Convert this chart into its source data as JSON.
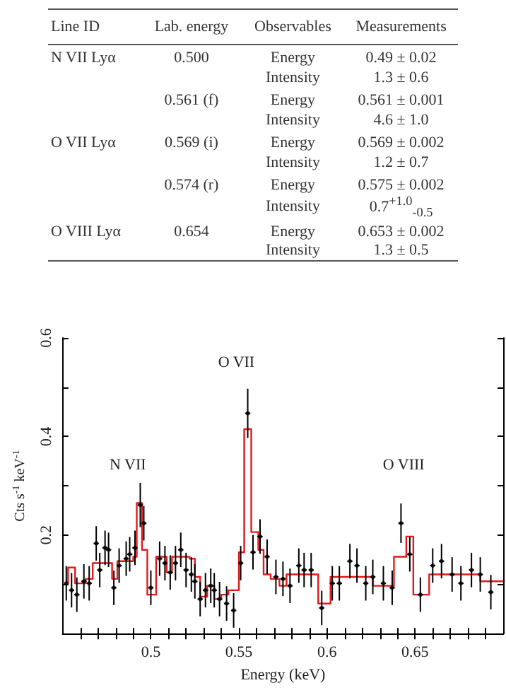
{
  "chart_data": [
    {
      "type": "other",
      "categories": [
        "Line ID",
        "Lab. energy",
        "Observables",
        "Measurements"
      ],
      "annotations": [
        "N VII Lyα",
        "0.500",
        "Energy",
        "0.49 ± 0.02",
        null,
        null,
        "Intensity",
        "1.3 ± 0.6",
        null,
        "0.561 (f)",
        "Energy",
        "0.561 ± 0.001",
        null,
        null,
        "Intensity",
        "4.6 ± 1.0",
        "O VII Lyα",
        "0.569 (i)",
        "Energy",
        "0.569 ± 0.002",
        null,
        null,
        "Intensity",
        "1.2 ± 0.7",
        null,
        "0.574 (r)",
        "Energy",
        "0.575 ± 0.002",
        null,
        null,
        "Intensity",
        "0.7$^{+1.0}$$_{-0.5}$",
        "O VIII Lyα",
        "0.654",
        "Energy",
        "0.653 ± 0.002",
        null,
        null,
        "Intensity",
        "1.3 ± 0.5"
      ]
    },
    {
      "type": "scatter",
      "xlabel": "Energy (keV)",
      "ylabel": "Cts s$^{-1}$ keV$^{-1}$",
      "xlim": [
        0.45,
        0.7
      ],
      "ylim": [
        0,
        0.6
      ],
      "xticks": [
        {
          "value": 0.46,
          "label": null
        },
        {
          "value": 0.47,
          "label": null
        },
        {
          "value": 0.48,
          "label": null
        },
        {
          "value": 0.49,
          "label": null
        },
        0.5,
        {
          "value": 0.51,
          "label": null
        },
        {
          "value": 0.52,
          "label": null
        },
        {
          "value": 0.53,
          "label": null
        },
        {
          "value": 0.54,
          "label": null
        },
        0.55,
        {
          "value": 0.56,
          "label": null
        },
        {
          "value": 0.57,
          "label": null
        },
        {
          "value": 0.58,
          "label": null
        },
        {
          "value": 0.59,
          "label": null
        },
        0.6,
        {
          "value": 0.61,
          "label": null
        },
        {
          "value": 0.62,
          "label": null
        },
        {
          "value": 0.63,
          "label": null
        },
        {
          "value": 0.64,
          "label": null
        },
        0.65,
        {
          "value": 0.66,
          "label": null
        },
        {
          "value": 0.67,
          "label": null
        },
        {
          "value": 0.68,
          "label": null
        },
        {
          "value": 0.69,
          "label": null
        }
      ],
      "yticks": [
        {
          "value": 0.1,
          "label": null
        },
        0.2,
        {
          "value": 0.3,
          "label": null
        },
        0.4,
        {
          "value": 0.5,
          "label": null
        },
        0.6
      ],
      "annotations": [
        "N VII",
        "O VII",
        "O VIII"
      ],
      "series": [
        {
          "type": "scatter",
          "color": "#000000",
          "marker": "circle",
          "x": [
            0.452,
            0.455,
            0.458,
            0.462,
            0.465,
            0.469,
            0.471,
            0.474,
            0.476,
            0.479,
            0.482,
            0.486,
            0.488,
            0.491,
            0.494,
            0.496,
            0.5,
            0.505,
            0.508,
            0.511,
            0.514,
            0.517,
            0.52,
            0.523,
            0.525,
            0.528,
            0.531,
            0.534,
            0.536,
            0.539,
            0.543,
            0.547,
            0.551,
            0.555,
            0.558,
            0.562,
            0.566,
            0.571,
            0.575,
            0.579,
            0.584,
            0.587,
            0.591,
            0.597,
            0.603,
            0.607,
            0.613,
            0.617,
            0.622,
            0.626,
            0.632,
            0.637,
            0.642,
            0.647,
            0.653,
            0.66,
            0.665,
            0.671,
            0.676,
            0.682,
            0.687,
            0.693
          ],
          "values": [
            0.102,
            0.088,
            0.079,
            0.106,
            0.102,
            0.183,
            0.129,
            0.174,
            0.17,
            0.093,
            0.138,
            0.152,
            0.161,
            0.174,
            0.261,
            0.224,
            0.093,
            0.152,
            0.143,
            0.124,
            0.143,
            0.17,
            0.129,
            0.12,
            0.106,
            0.07,
            0.088,
            0.097,
            0.088,
            0.07,
            0.061,
            0.047,
            0.143,
            0.447,
            0.165,
            0.197,
            0.156,
            0.115,
            0.111,
            0.097,
            0.138,
            0.129,
            0.129,
            0.052,
            0.102,
            0.102,
            0.147,
            0.138,
            0.102,
            0.115,
            0.102,
            0.093,
            0.224,
            0.161,
            0.079,
            0.138,
            0.147,
            0.12,
            0.102,
            0.129,
            0.12,
            0.084
          ],
          "errors": [
            0.035,
            0.035,
            0.035,
            0.035,
            0.035,
            0.035,
            0.035,
            0.035,
            0.035,
            0.035,
            0.035,
            0.035,
            0.035,
            0.035,
            0.045,
            0.035,
            0.035,
            0.035,
            0.035,
            0.035,
            0.035,
            0.035,
            0.035,
            0.035,
            0.035,
            0.035,
            0.035,
            0.035,
            0.035,
            0.035,
            0.035,
            0.035,
            0.035,
            0.05,
            0.035,
            0.035,
            0.035,
            0.035,
            0.035,
            0.035,
            0.035,
            0.035,
            0.035,
            0.035,
            0.035,
            0.035,
            0.035,
            0.035,
            0.035,
            0.035,
            0.035,
            0.035,
            0.04,
            0.035,
            0.035,
            0.035,
            0.035,
            0.035,
            0.035,
            0.035,
            0.035,
            0.035
          ],
          "xerrors": [
            null,
            0.0015,
            0.0015,
            0.0015,
            0.0015,
            0.0015,
            0.0015,
            0.0015,
            0.0015,
            0.0015,
            0.0015,
            0.0015,
            0.0015,
            0.0015,
            0.0015,
            0.0015,
            0.0015,
            0.0015,
            0.0015,
            0.0015,
            0.0015,
            0.0015,
            0.0015,
            0.0015,
            0.0015,
            0.0015,
            0.0015,
            0.0015,
            0.0015,
            0.0015,
            0.0015,
            0.0015,
            0.0015,
            0.0015,
            0.0015,
            0.0015,
            0.0015,
            0.0015,
            0.0015,
            0.0015,
            0.0015,
            0.0015,
            0.0015,
            0.0015,
            0.0015,
            0.0015,
            0.0015,
            0.0015,
            0.0015,
            0.0015,
            0.0015,
            0.0015,
            0.0015,
            0.0015,
            0.0015,
            0.0015,
            0.0015,
            0.0015,
            0.0015,
            0.0015,
            0.0015,
            0.0015
          ]
        },
        {
          "type": "step",
          "color": "#e31a1c",
          "x": [
            0.45,
            0.453,
            0.457,
            0.463,
            0.467,
            0.478,
            0.481,
            0.49,
            0.492,
            0.495,
            0.498,
            0.503,
            0.509,
            0.512,
            0.522,
            0.525,
            0.528,
            0.532,
            0.536,
            0.54,
            0.544,
            0.55,
            0.553,
            0.557,
            0.561,
            0.564,
            0.568,
            0.573,
            0.577,
            0.595,
            0.602,
            0.626,
            0.638,
            0.645,
            0.649,
            0.658,
            0.687,
            0.7
          ],
          "values": [
            0.102,
            0.134,
            0.102,
            0.111,
            0.143,
            0.111,
            0.147,
            0.156,
            0.265,
            0.17,
            0.079,
            0.156,
            0.124,
            0.156,
            0.152,
            0.115,
            0.075,
            0.097,
            0.07,
            0.079,
            0.088,
            0.165,
            0.415,
            0.206,
            0.17,
            0.12,
            0.111,
            0.097,
            0.12,
            0.061,
            0.115,
            0.097,
            0.156,
            0.197,
            0.079,
            0.12,
            0.106,
            0.106
          ]
        }
      ]
    }
  ]
}
